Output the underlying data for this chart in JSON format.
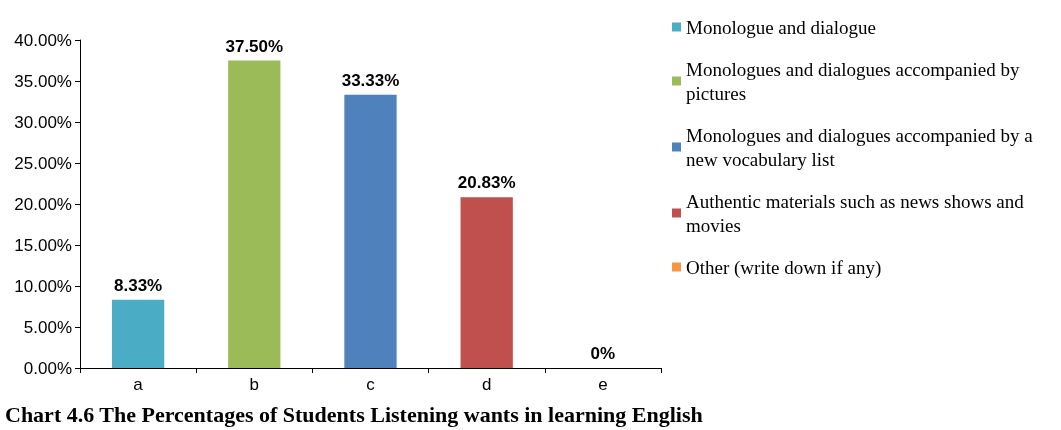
{
  "chart_data": {
    "type": "bar",
    "title": "Chart 4.6 The Percentages of Students Listening wants in learning English",
    "categories": [
      "a",
      "b",
      "c",
      "d",
      "e"
    ],
    "legend": "right",
    "grid": false,
    "ylim": [
      0,
      40
    ],
    "yticks": [
      {
        "value": 0,
        "label": "0.00%"
      },
      {
        "value": 5,
        "label": "5.00%"
      },
      {
        "value": 10,
        "label": "10.00%"
      },
      {
        "value": 15,
        "label": "15.00%"
      },
      {
        "value": 20,
        "label": "20.00%"
      },
      {
        "value": 25,
        "label": "25.00%"
      },
      {
        "value": 30,
        "label": "30.00%"
      },
      {
        "value": 35,
        "label": "35.00%"
      },
      {
        "value": 40,
        "label": "40.00%"
      }
    ],
    "series": [
      {
        "name": "Monologue and dialogue",
        "color": "#4bacc6",
        "values": [
          8.33,
          null,
          null,
          null,
          null
        ],
        "value_labels": [
          "8.33%",
          null,
          null,
          null,
          null
        ]
      },
      {
        "name": "Monologues and dialogues accompanied by pictures",
        "color": "#9bbb59",
        "values": [
          null,
          37.5,
          null,
          null,
          null
        ],
        "value_labels": [
          null,
          "37.50%",
          null,
          null,
          null
        ]
      },
      {
        "name": "Monologues and dialogues accompanied by a new vocabulary list",
        "color": "#4f81bd",
        "values": [
          null,
          null,
          33.33,
          null,
          null
        ],
        "value_labels": [
          null,
          null,
          "33.33%",
          null,
          null
        ]
      },
      {
        "name": "Authentic materials such as news shows and movies",
        "color": "#c0504d",
        "values": [
          null,
          null,
          null,
          20.83,
          null
        ],
        "value_labels": [
          null,
          null,
          null,
          "20.83%",
          null
        ]
      },
      {
        "name": "Other (write down if any)",
        "color": "#f79646",
        "values": [
          null,
          null,
          null,
          null,
          0
        ],
        "value_labels": [
          null,
          null,
          null,
          null,
          "0%"
        ]
      }
    ]
  }
}
